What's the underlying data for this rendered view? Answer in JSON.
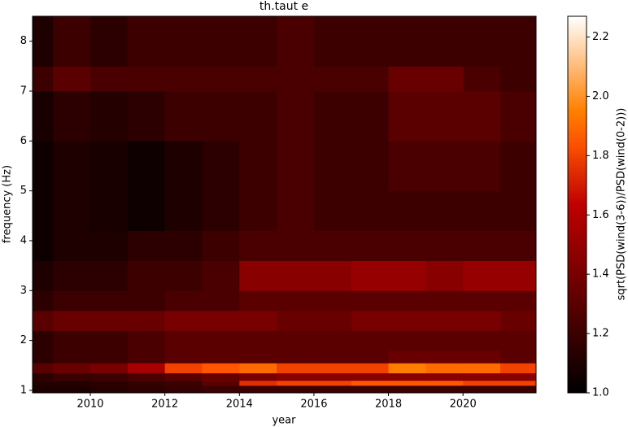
{
  "chart_data": {
    "type": "heatmap",
    "title": "th.taut e",
    "xlabel": "year",
    "ylabel": "frequency (Hz)",
    "colormap": "gist_heat",
    "x_edges": [
      2008.45,
      2009,
      2010,
      2011,
      2012,
      2013,
      2014,
      2015,
      2016,
      2017,
      2018,
      2019,
      2020,
      2021,
      2021.96
    ],
    "y_edges": [
      0.95,
      1.1,
      1.2,
      1.35,
      1.55,
      1.8,
      2.2,
      2.6,
      3.0,
      3.6,
      4.2,
      5,
      6,
      7,
      7.5,
      8.5
    ],
    "z": [
      [
        1.1,
        1.1,
        1.12,
        1.15,
        1.18,
        1.2,
        1.2,
        1.2,
        1.2,
        1.2,
        1.2,
        1.2,
        1.2,
        1.2
      ],
      [
        1.12,
        1.12,
        1.15,
        1.18,
        1.2,
        1.3,
        1.75,
        1.8,
        1.8,
        1.85,
        1.85,
        1.85,
        1.8,
        1.8
      ],
      [
        1.15,
        1.2,
        1.2,
        1.25,
        1.3,
        1.35,
        1.4,
        1.45,
        1.45,
        1.45,
        1.45,
        1.45,
        1.45,
        1.45
      ],
      [
        1.3,
        1.35,
        1.4,
        1.55,
        1.8,
        1.85,
        1.9,
        1.8,
        1.8,
        1.8,
        1.95,
        1.9,
        1.9,
        1.8
      ],
      [
        1.15,
        1.2,
        1.2,
        1.25,
        1.3,
        1.3,
        1.3,
        1.3,
        1.3,
        1.3,
        1.35,
        1.35,
        1.35,
        1.3
      ],
      [
        1.15,
        1.2,
        1.2,
        1.25,
        1.3,
        1.3,
        1.3,
        1.3,
        1.3,
        1.3,
        1.3,
        1.3,
        1.3,
        1.3
      ],
      [
        1.3,
        1.35,
        1.35,
        1.35,
        1.4,
        1.4,
        1.4,
        1.35,
        1.35,
        1.4,
        1.4,
        1.4,
        1.4,
        1.35
      ],
      [
        1.15,
        1.2,
        1.2,
        1.2,
        1.25,
        1.25,
        1.3,
        1.3,
        1.3,
        1.3,
        1.3,
        1.3,
        1.3,
        1.3
      ],
      [
        1.1,
        1.15,
        1.15,
        1.2,
        1.2,
        1.25,
        1.45,
        1.45,
        1.45,
        1.5,
        1.5,
        1.45,
        1.5,
        1.5
      ],
      [
        1.05,
        1.1,
        1.1,
        1.15,
        1.15,
        1.2,
        1.25,
        1.25,
        1.25,
        1.25,
        1.25,
        1.25,
        1.25,
        1.25
      ],
      [
        1.05,
        1.1,
        1.08,
        1.05,
        1.1,
        1.15,
        1.2,
        1.25,
        1.2,
        1.2,
        1.2,
        1.2,
        1.2,
        1.2
      ],
      [
        1.05,
        1.1,
        1.08,
        1.05,
        1.1,
        1.15,
        1.2,
        1.25,
        1.2,
        1.2,
        1.25,
        1.25,
        1.25,
        1.2
      ],
      [
        1.08,
        1.15,
        1.12,
        1.15,
        1.2,
        1.2,
        1.2,
        1.25,
        1.2,
        1.2,
        1.3,
        1.3,
        1.3,
        1.25
      ],
      [
        1.2,
        1.3,
        1.25,
        1.25,
        1.25,
        1.25,
        1.25,
        1.25,
        1.25,
        1.25,
        1.35,
        1.35,
        1.25,
        1.2
      ],
      [
        1.1,
        1.2,
        1.15,
        1.2,
        1.2,
        1.2,
        1.2,
        1.25,
        1.2,
        1.2,
        1.2,
        1.2,
        1.2,
        1.2
      ]
    ],
    "xlim": [
      2008.45,
      2021.96
    ],
    "ylim": [
      0.95,
      8.5
    ],
    "xticks": [
      2010,
      2012,
      2014,
      2016,
      2018,
      2020
    ],
    "yticks": [
      1,
      2,
      3,
      4,
      5,
      6,
      7,
      8
    ],
    "colorbar": {
      "label": "sqrt(PSD(wind(3-6))/PSD(wind(0-2)))",
      "lim": [
        1.0,
        2.27
      ],
      "ticks": [
        {
          "value": 1.0,
          "label": "1.0"
        },
        {
          "value": 1.2,
          "label": "1.2"
        },
        {
          "value": 1.4,
          "label": "1.4"
        },
        {
          "value": 1.6,
          "label": "1.6"
        },
        {
          "value": 1.8,
          "label": "1.8"
        },
        {
          "value": 2.0,
          "label": "2.0"
        },
        {
          "value": 2.2,
          "label": "2.2"
        }
      ]
    }
  }
}
